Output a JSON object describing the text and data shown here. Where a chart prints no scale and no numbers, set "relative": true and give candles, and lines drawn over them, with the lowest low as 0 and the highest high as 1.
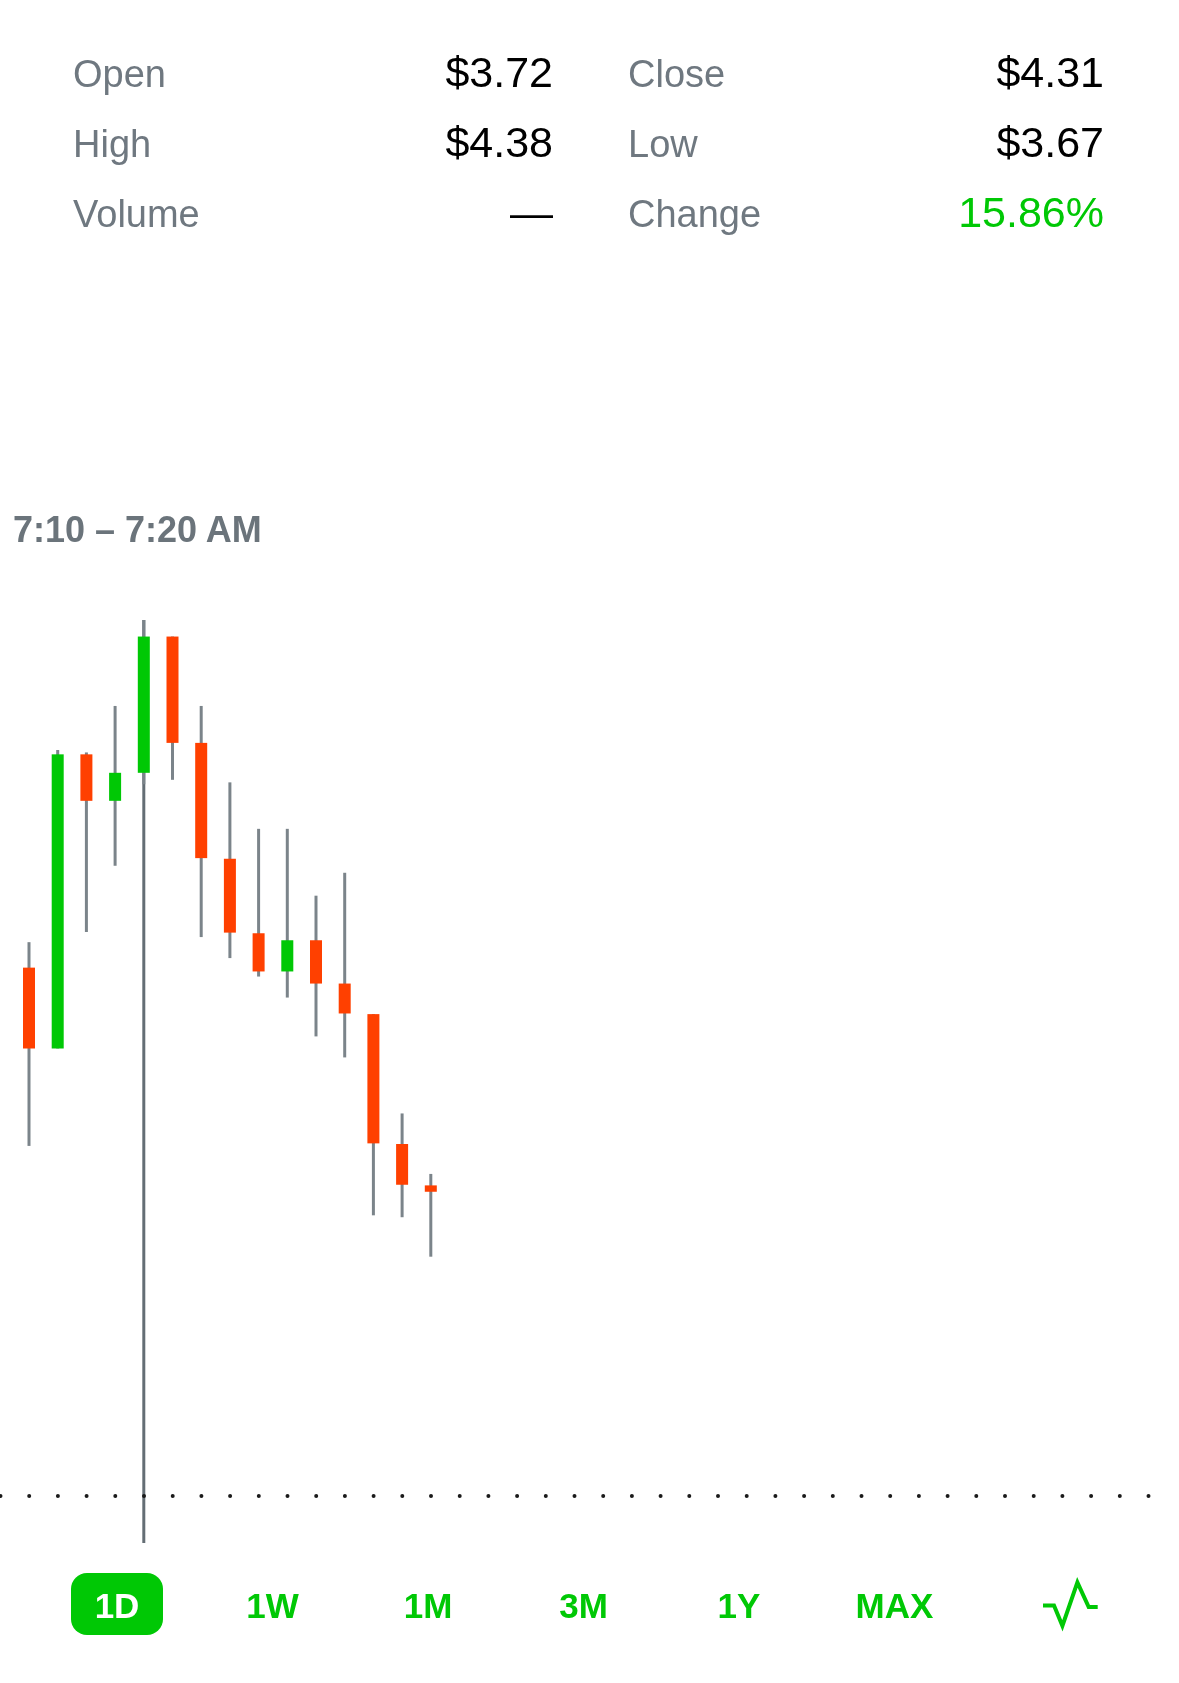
{
  "chart_data": [
    {
      "type": "other",
      "annotations": [
        "Open",
        "$3.72",
        "Close",
        "$4.31",
        "High",
        "$4.38",
        "Low",
        "$3.67",
        "Volume",
        "—",
        "Change",
        "15.86%"
      ]
    },
    {
      "type": "candlestick",
      "relative": true,
      "annotations": [
        "7:10 – 7:20 AM"
      ],
      "categories": [
        null,
        null,
        null,
        null,
        null,
        null,
        null,
        null,
        null,
        null,
        null,
        null,
        null,
        null,
        null
      ],
      "ohlc": [
        [
          0.454,
          0.494,
          0.174,
          0.327
        ],
        [
          0.327,
          0.796,
          0.327,
          0.789
        ],
        [
          0.789,
          0.792,
          0.51,
          0.716
        ],
        [
          0.716,
          0.865,
          0.614,
          0.76
        ],
        [
          0.76,
          1,
          0.742,
          0.974
        ],
        [
          0.974,
          0.974,
          0.749,
          0.807
        ],
        [
          0.807,
          0.865,
          0.502,
          0.626
        ],
        [
          0.625,
          0.745,
          0.469,
          0.509
        ],
        [
          0.508,
          0.672,
          0.44,
          0.448
        ],
        [
          0.448,
          0.672,
          0.407,
          0.497
        ],
        [
          0.497,
          0.567,
          0.346,
          0.429
        ],
        [
          0.429,
          0.603,
          0.313,
          0.382
        ],
        [
          0.381,
          0.381,
          0.065,
          0.178
        ],
        [
          0.177,
          0.225,
          0.062,
          0.113
        ],
        [
          0.112,
          0.13,
          0,
          0.102
        ]
      ],
      "colors": [
        "#ff4000",
        "#00c805",
        "#ff4000",
        "#00c805",
        "#00c805",
        "#ff4000",
        "#ff4000",
        "#ff4000",
        "#ff4000",
        "#00c805",
        "#ff4000",
        "#ff4000",
        "#ff4000",
        "#ff4000",
        "#ff4000"
      ],
      "ref_lines": [
        {
          "axis": "y",
          "value": -0.376,
          "color": "#1a1a1a",
          "line_style": "dotted"
        }
      ]
    },
    {
      "type": "other",
      "annotations": [
        "1D",
        "1W",
        "1M",
        "3M",
        "1Y",
        "MAX"
      ]
    }
  ]
}
